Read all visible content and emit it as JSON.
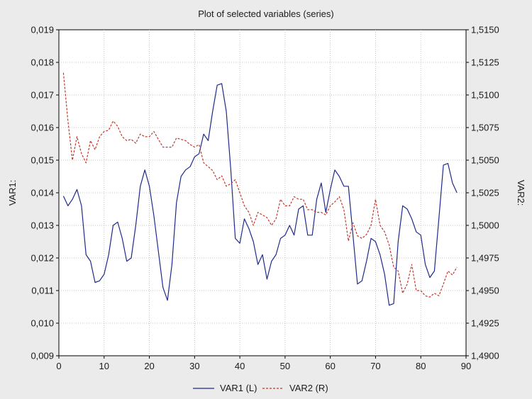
{
  "chart_data": {
    "type": "line",
    "title": "Plot of selected variables (series)",
    "ylabel_left": "VAR1:",
    "ylabel_right": "VAR2:",
    "xlim": [
      0,
      90
    ],
    "ylim_left": [
      0.009,
      0.019
    ],
    "ylim_right": [
      1.49,
      1.515
    ],
    "grid": true,
    "legend_position": "bottom-center",
    "x_ticks": [
      "0",
      "10",
      "20",
      "30",
      "40",
      "50",
      "60",
      "70",
      "80",
      "90"
    ],
    "y_left_ticks": [
      "0,009",
      "0,010",
      "0,011",
      "0,012",
      "0,013",
      "0,014",
      "0,015",
      "0,016",
      "0,017",
      "0,018",
      "0,019"
    ],
    "y_right_ticks": [
      "1,4900",
      "1,4925",
      "1,4950",
      "1,4975",
      "1,5000",
      "1,5025",
      "1,5050",
      "1,5075",
      "1,5100",
      "1,5125",
      "1,5150"
    ],
    "series": [
      {
        "name": "VAR1 (L)",
        "axis": "left",
        "color": "#1f2a8a",
        "style": "solid",
        "x": [
          1,
          2,
          3,
          4,
          5,
          6,
          7,
          8,
          9,
          10,
          11,
          12,
          13,
          14,
          15,
          16,
          17,
          18,
          19,
          20,
          21,
          22,
          23,
          24,
          25,
          26,
          27,
          28,
          29,
          30,
          31,
          32,
          33,
          34,
          35,
          36,
          37,
          38,
          39,
          40,
          41,
          42,
          43,
          44,
          45,
          46,
          47,
          48,
          49,
          50,
          51,
          52,
          53,
          54,
          55,
          56,
          57,
          58,
          59,
          60,
          61,
          62,
          63,
          64,
          65,
          66,
          67,
          68,
          69,
          70,
          71,
          72,
          73,
          74,
          75,
          76,
          77,
          78,
          79,
          80,
          81,
          82,
          83,
          84,
          85,
          86,
          87,
          88
        ],
        "values": [
          0.0139,
          0.0136,
          0.0138,
          0.0141,
          0.0136,
          0.0121,
          0.0119,
          0.01125,
          0.0113,
          0.0115,
          0.0121,
          0.013,
          0.0131,
          0.0126,
          0.0119,
          0.012,
          0.013,
          0.0142,
          0.0147,
          0.0142,
          0.0133,
          0.0122,
          0.0111,
          0.0107,
          0.0118,
          0.0137,
          0.0145,
          0.0147,
          0.0148,
          0.0151,
          0.0152,
          0.0158,
          0.0156,
          0.0165,
          0.0173,
          0.01735,
          0.0165,
          0.0147,
          0.0126,
          0.01245,
          0.0132,
          0.0129,
          0.0125,
          0.0118,
          0.0121,
          0.01135,
          0.0119,
          0.0121,
          0.0126,
          0.0127,
          0.013,
          0.0127,
          0.0135,
          0.0136,
          0.0127,
          0.0127,
          0.0138,
          0.0143,
          0.0134,
          0.0141,
          0.0147,
          0.0145,
          0.0142,
          0.0142,
          0.0127,
          0.0112,
          0.0113,
          0.0119,
          0.0126,
          0.0125,
          0.0121,
          0.0115,
          0.01055,
          0.0106,
          0.0125,
          0.0136,
          0.0135,
          0.0132,
          0.0128,
          0.0127,
          0.0118,
          0.0114,
          0.0116,
          0.0132,
          0.01485,
          0.0149,
          0.0143,
          0.014
        ]
      },
      {
        "name": "VAR2 (R)",
        "axis": "right",
        "color": "#c0392b",
        "style": "dashed",
        "x": [
          1,
          2,
          3,
          4,
          5,
          6,
          7,
          8,
          9,
          10,
          11,
          12,
          13,
          14,
          15,
          16,
          17,
          18,
          19,
          20,
          21,
          22,
          23,
          24,
          25,
          26,
          27,
          28,
          29,
          30,
          31,
          32,
          33,
          34,
          35,
          36,
          37,
          38,
          39,
          40,
          41,
          42,
          43,
          44,
          45,
          46,
          47,
          48,
          49,
          50,
          51,
          52,
          53,
          54,
          55,
          56,
          57,
          58,
          59,
          60,
          61,
          62,
          63,
          64,
          65,
          66,
          67,
          68,
          69,
          70,
          71,
          72,
          73,
          74,
          75,
          76,
          77,
          78,
          79,
          80,
          81,
          82,
          83,
          84,
          85,
          86,
          87,
          88
        ],
        "values": [
          1.5117,
          1.508,
          1.505,
          1.5068,
          1.5055,
          1.5048,
          1.5065,
          1.5058,
          1.5068,
          1.5072,
          1.5073,
          1.508,
          1.5076,
          1.5068,
          1.5065,
          1.5066,
          1.5063,
          1.507,
          1.5068,
          1.5068,
          1.5072,
          1.5066,
          1.506,
          1.506,
          1.506,
          1.5067,
          1.5066,
          1.5065,
          1.5062,
          1.506,
          1.5062,
          1.5048,
          1.5045,
          1.5042,
          1.5035,
          1.5038,
          1.503,
          1.5032,
          1.5035,
          1.5025,
          1.5015,
          1.501,
          1.5,
          1.501,
          1.5008,
          1.5006,
          1.5,
          1.5005,
          1.502,
          1.5015,
          1.5015,
          1.5022,
          1.502,
          1.502,
          1.5012,
          1.5012,
          1.501,
          1.501,
          1.5008,
          1.5015,
          1.5018,
          1.5022,
          1.5012,
          1.4988,
          1.5002,
          1.4992,
          1.499,
          1.4993,
          1.5,
          1.502,
          1.5,
          1.4995,
          1.4985,
          1.4968,
          1.4965,
          1.4948,
          1.4955,
          1.497,
          1.495,
          1.495,
          1.4946,
          1.4945,
          1.4948,
          1.4946,
          1.4955,
          1.4965,
          1.4962,
          1.4968
        ]
      }
    ]
  }
}
